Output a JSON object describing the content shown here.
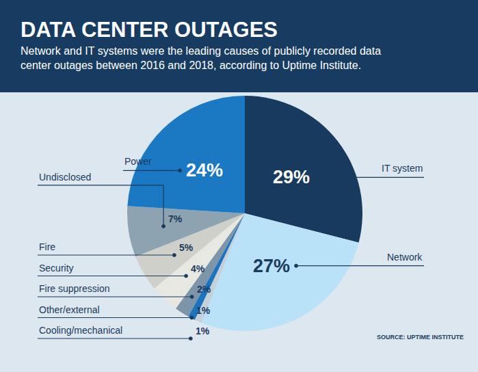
{
  "chart_data": {
    "type": "pie",
    "title": "DATA CENTER OUTAGES",
    "subtitle": "Network and IT systems were the leading causes of publicly recorded data center outages between 2016 and 2018, according to Uptime Institute.",
    "source": "SOURCE: UPTIME INSTITUTE",
    "categories": [
      "IT system",
      "Network",
      "Cooling/mechanical",
      "Other/external",
      "Fire suppression",
      "Security",
      "Fire",
      "Undisclosed",
      "Power"
    ],
    "values": [
      29,
      27,
      1,
      1,
      2,
      4,
      5,
      7,
      24
    ],
    "value_labels": [
      "29%",
      "27%",
      "1%",
      "1%",
      "2%",
      "4%",
      "5%",
      "7%",
      "24%"
    ],
    "colors": [
      "#173a5e",
      "#b9e1f7",
      "#c5d0d8",
      "#1e73be",
      "#7d95a8",
      "#e8e8e2",
      "#cfd0c9",
      "#8ea3b2",
      "#1b79c4"
    ],
    "data_labels": true
  }
}
